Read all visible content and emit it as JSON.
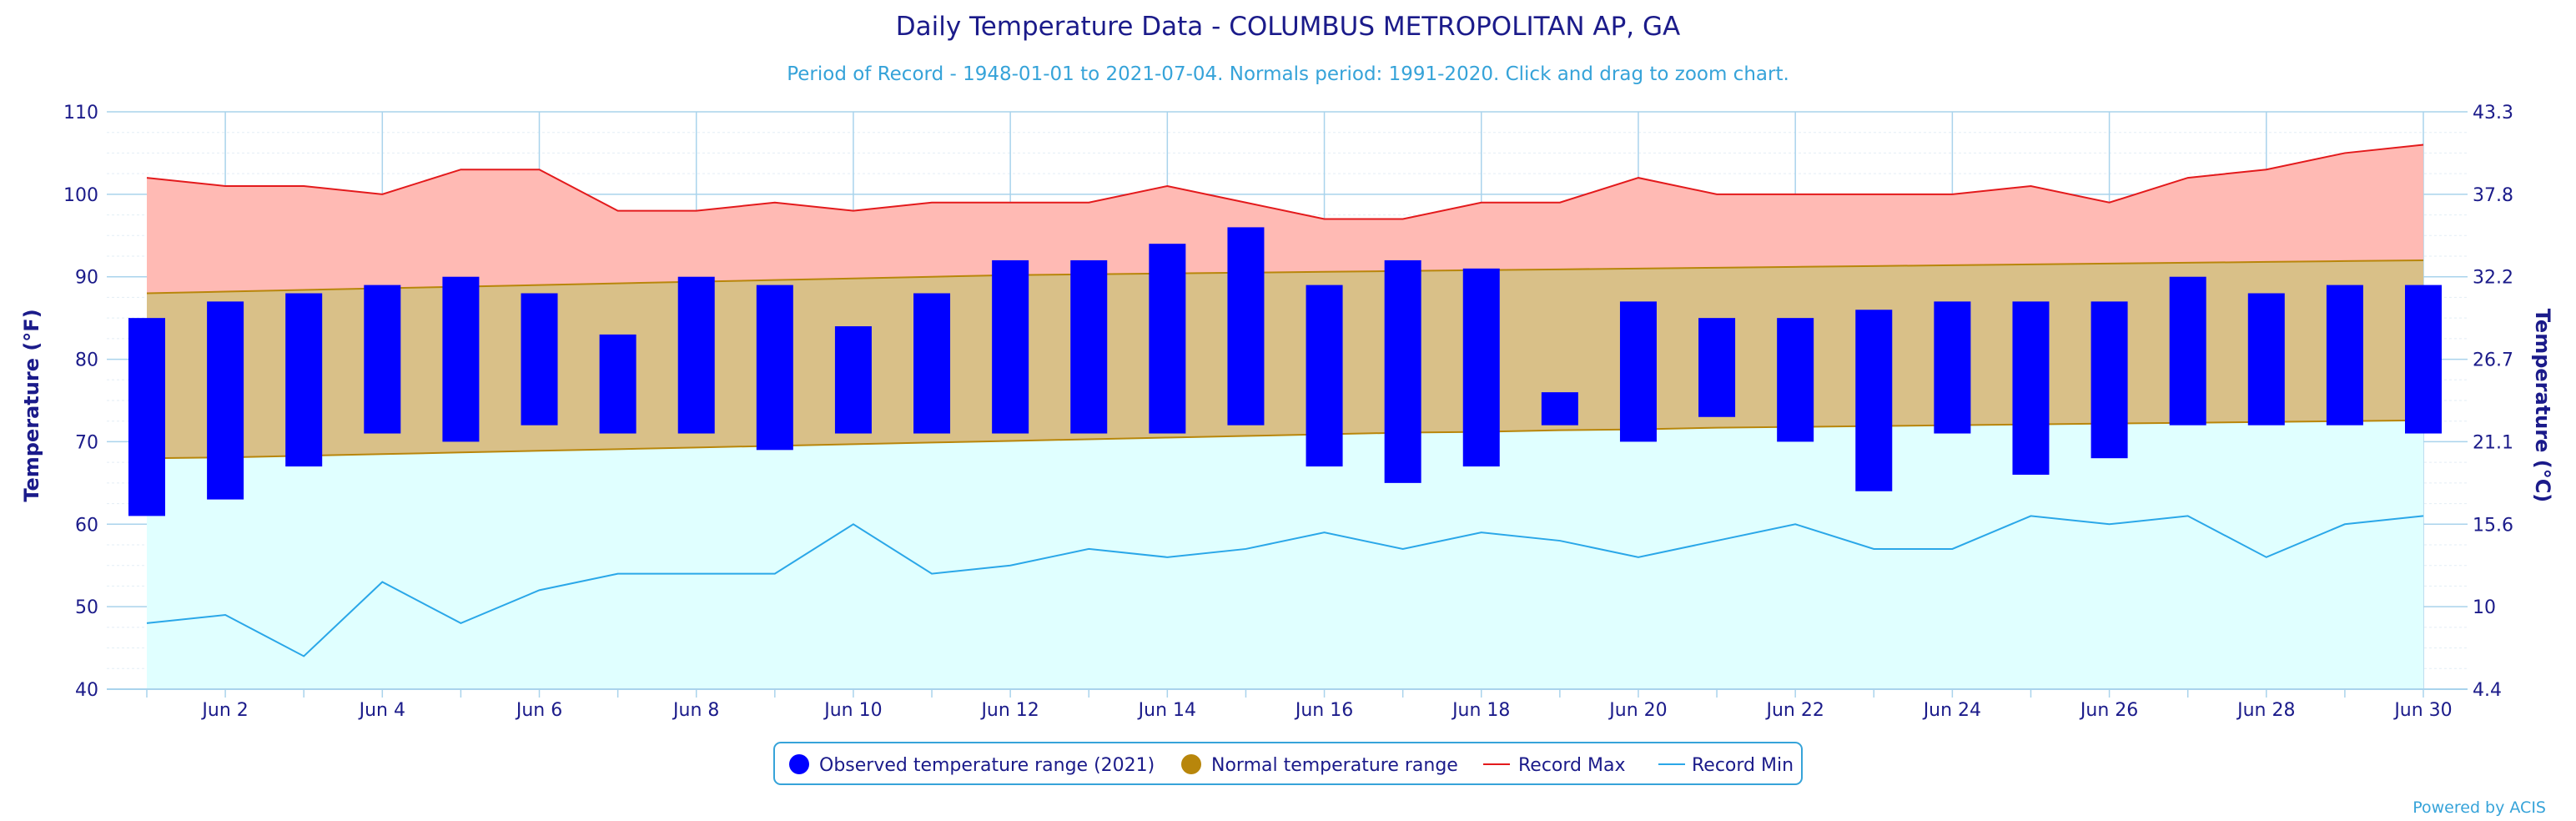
{
  "colors": {
    "title": "#1b1b8a",
    "subtitle": "#36a3d9",
    "axis_text": "#1b1b8a",
    "grid": "#a9d3ec",
    "observed": "#0000ff",
    "normal_band": "#d9c088",
    "normal_line": "#b8860b",
    "record_max_fill": "#ffbab4",
    "record_max_line": "#e31a1c",
    "record_min_fill": "#e0ffff",
    "record_min_line": "#2aa7e8",
    "legend_border": "#36a3d9",
    "credit": "#36a3d9"
  },
  "chart_data": {
    "type": "bar",
    "title": "Daily Temperature Data - COLUMBUS METROPOLITAN AP, GA",
    "subtitle": "Period of Record - 1948-01-01 to 2021-07-04. Normals period: 1991-2020. Click and drag to zoom chart.",
    "credit": "Powered by ACIS",
    "ylabel_left": "Temperature (°F)",
    "ylabel_right": "Temperature (°C)",
    "ylim": [
      40,
      110
    ],
    "y_ticks": [
      40,
      50,
      60,
      70,
      80,
      90,
      100,
      110
    ],
    "y2_ticks": [
      "4.4",
      "10",
      "15.6",
      "21.1",
      "26.7",
      "32.2",
      "37.8",
      "43.3"
    ],
    "days": [
      1,
      2,
      3,
      4,
      5,
      6,
      7,
      8,
      9,
      10,
      11,
      12,
      13,
      14,
      15,
      16,
      17,
      18,
      19,
      20,
      21,
      22,
      23,
      24,
      25,
      26,
      27,
      28,
      29,
      30
    ],
    "x_tick_labels": [
      "Jun 2",
      "Jun 4",
      "Jun 6",
      "Jun 8",
      "Jun 10",
      "Jun 12",
      "Jun 14",
      "Jun 16",
      "Jun 18",
      "Jun 20",
      "Jun 22",
      "Jun 24",
      "Jun 26",
      "Jun 28",
      "Jun 30"
    ],
    "x_tick_days": [
      2,
      4,
      6,
      8,
      10,
      12,
      14,
      16,
      18,
      20,
      22,
      24,
      26,
      28,
      30
    ],
    "observed_low": [
      61,
      63,
      67,
      71,
      70,
      72,
      71,
      71,
      69,
      71,
      71,
      71,
      71,
      71,
      72,
      67,
      65,
      67,
      72,
      70,
      73,
      70,
      64,
      71,
      66,
      68,
      72,
      72,
      72,
      71
    ],
    "observed_high": [
      85,
      87,
      88,
      89,
      90,
      88,
      83,
      90,
      89,
      84,
      88,
      92,
      92,
      94,
      96,
      89,
      92,
      91,
      76,
      87,
      85,
      85,
      86,
      87,
      87,
      87,
      90,
      88,
      89,
      89
    ],
    "normal_low": [
      68,
      68.1,
      68.3,
      68.5,
      68.7,
      68.9,
      69.1,
      69.3,
      69.5,
      69.7,
      69.9,
      70.1,
      70.3,
      70.5,
      70.7,
      70.9,
      71.1,
      71.2,
      71.4,
      71.5,
      71.7,
      71.8,
      71.9,
      72,
      72.1,
      72.2,
      72.3,
      72.4,
      72.5,
      72.6
    ],
    "normal_high": [
      88,
      88.2,
      88.4,
      88.6,
      88.8,
      89,
      89.2,
      89.4,
      89.6,
      89.8,
      90,
      90.2,
      90.3,
      90.4,
      90.5,
      90.6,
      90.7,
      90.8,
      90.9,
      91,
      91.1,
      91.2,
      91.3,
      91.4,
      91.5,
      91.6,
      91.7,
      91.8,
      91.9,
      92
    ],
    "record_max": [
      102,
      101,
      101,
      100,
      103,
      103,
      98,
      98,
      99,
      98,
      99,
      99,
      99,
      101,
      99,
      97,
      97,
      99,
      99,
      102,
      100,
      100,
      100,
      100,
      101,
      99,
      102,
      103,
      105,
      106
    ],
    "record_min": [
      48,
      49,
      44,
      53,
      48,
      52,
      54,
      54,
      54,
      60,
      54,
      55,
      57,
      56,
      57,
      59,
      57,
      59,
      58,
      56,
      58,
      60,
      57,
      57,
      61,
      60,
      61,
      56,
      60,
      61
    ],
    "legend": [
      {
        "label": "Observed temperature range (2021)",
        "symbol": "circle",
        "color": "#0000ff"
      },
      {
        "label": "Normal temperature range",
        "symbol": "circle",
        "color": "#b8860b"
      },
      {
        "label": "Record Max",
        "symbol": "line",
        "color": "#e31a1c"
      },
      {
        "label": "Record Min",
        "symbol": "line",
        "color": "#2aa7e8"
      }
    ],
    "legend_position": "bottom-center"
  }
}
